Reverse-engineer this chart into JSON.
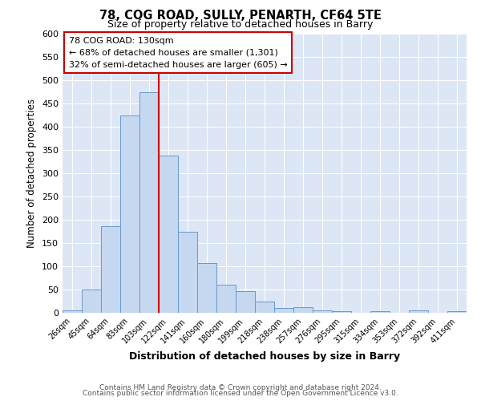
{
  "title": "78, COG ROAD, SULLY, PENARTH, CF64 5TE",
  "subtitle": "Size of property relative to detached houses in Barry",
  "xlabel": "Distribution of detached houses by size in Barry",
  "ylabel": "Number of detached properties",
  "footer_lines": [
    "Contains HM Land Registry data © Crown copyright and database right 2024.",
    "Contains public sector information licensed under the Open Government Licence v3.0."
  ],
  "bar_labels": [
    "26sqm",
    "45sqm",
    "64sqm",
    "83sqm",
    "103sqm",
    "122sqm",
    "141sqm",
    "160sqm",
    "180sqm",
    "199sqm",
    "218sqm",
    "238sqm",
    "257sqm",
    "276sqm",
    "295sqm",
    "315sqm",
    "334sqm",
    "353sqm",
    "372sqm",
    "392sqm",
    "411sqm"
  ],
  "bar_values": [
    5,
    50,
    187,
    425,
    475,
    338,
    175,
    107,
    60,
    46,
    24,
    10,
    12,
    5,
    3,
    0,
    4,
    0,
    5,
    0,
    4
  ],
  "bar_color": "#c5d8f0",
  "bar_edge_color": "#6699cc",
  "background_color": "#dce6f5",
  "annotation_text": "78 COG ROAD: 130sqm\n← 68% of detached houses are smaller (1,301)\n32% of semi-detached houses are larger (605) →",
  "vline_x": 4.5,
  "vline_color": "#cc0000",
  "annotation_box_edge_color": "#cc0000",
  "ylim": [
    0,
    600
  ],
  "yticks": [
    0,
    50,
    100,
    150,
    200,
    250,
    300,
    350,
    400,
    450,
    500,
    550,
    600
  ]
}
